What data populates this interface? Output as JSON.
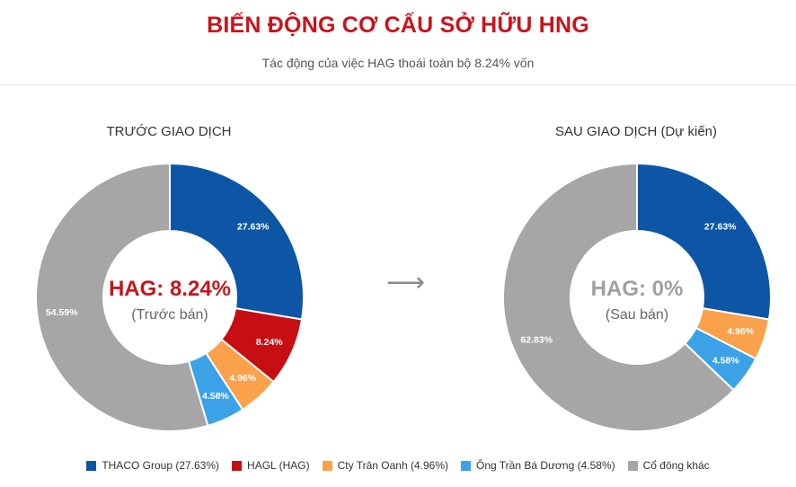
{
  "header": {
    "title": "BIẾN ĐỘNG CƠ CẤU SỞ HỮU HNG",
    "subtitle": "Tác động của việc HAG thoái toàn bộ 8.24% vốn"
  },
  "arrow_icon": "right-arrow-icon",
  "chart_data": [
    {
      "type": "pie",
      "title": "TRƯỚC GIAO DỊCH",
      "center_label": "HAG: 8.24%",
      "center_sublabel": "(Trước bán)",
      "center_color": "#c8141b",
      "categories": [
        "THACO Group",
        "HAGL (HAG)",
        "Cty Trân Oanh",
        "Ông Trần Bá Dương",
        "Cổ đông khác"
      ],
      "values": [
        27.63,
        8.24,
        4.96,
        4.58,
        54.59
      ],
      "labels": [
        "27.63%",
        "8.24%",
        "4.96%",
        "4.58%",
        "54.59%"
      ],
      "colors": [
        "#0d56a6",
        "#c70e13",
        "#f9a24b",
        "#3ba2e8",
        "#a6a6a6"
      ]
    },
    {
      "type": "pie",
      "title": "SAU GIAO DỊCH (Dự kiến)",
      "center_label": "HAG: 0%",
      "center_sublabel": "(Sau bán)",
      "center_color": "#a0a0a0",
      "categories": [
        "THACO Group",
        "Cty Trân Oanh",
        "Ông Trần Bá Dương",
        "Cổ đông khác"
      ],
      "values": [
        27.63,
        4.96,
        4.58,
        62.83
      ],
      "labels": [
        "27.63%",
        "4.96%",
        "4.58%",
        "62.83%"
      ],
      "colors": [
        "#0d56a6",
        "#f9a24b",
        "#3ba2e8",
        "#a6a6a6"
      ]
    }
  ],
  "legend": [
    {
      "label": "THACO Group (27.63%)",
      "color": "#0d56a6"
    },
    {
      "label": "HAGL (HAG)",
      "color": "#c70e13"
    },
    {
      "label": "Cty Trân Oanh (4.96%)",
      "color": "#f9a24b"
    },
    {
      "label": "Ông Trần Bá Dương (4.58%)",
      "color": "#3ba2e8"
    },
    {
      "label": "Cổ đông khác",
      "color": "#a6a6a6"
    }
  ]
}
